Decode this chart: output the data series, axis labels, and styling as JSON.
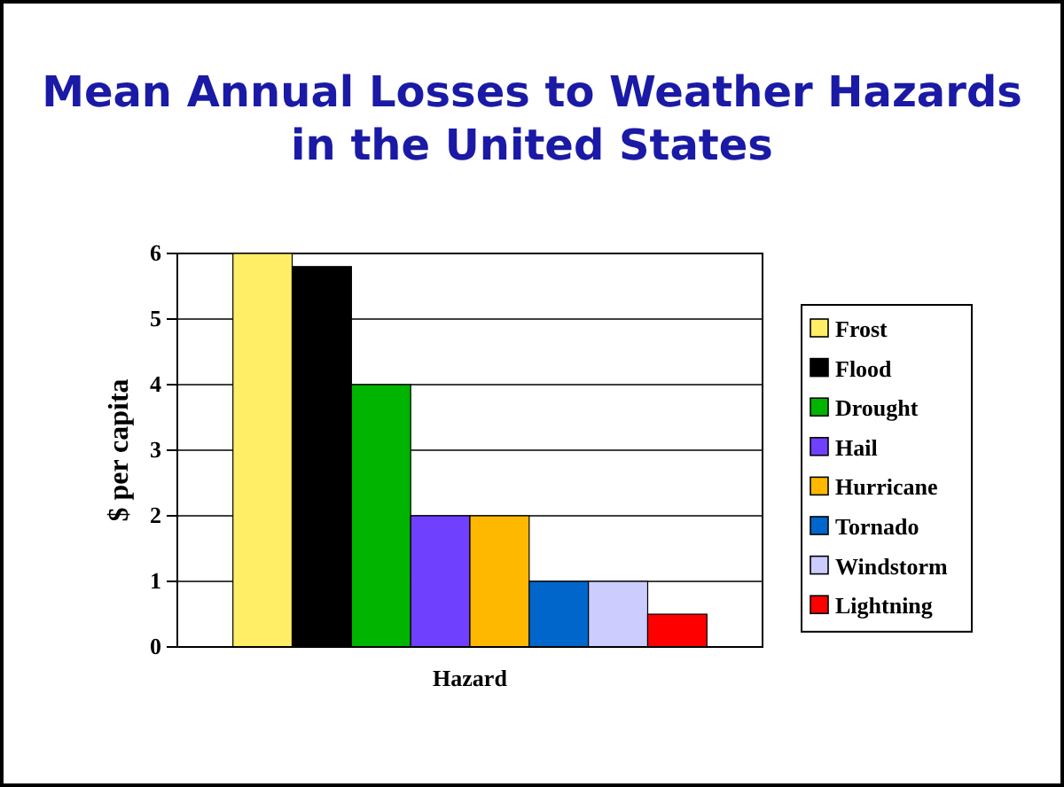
{
  "chart_data": {
    "type": "bar",
    "title": "Mean Annual Losses to Weather Hazards in the United States",
    "xlabel": "Hazard",
    "ylabel": "$ per capita",
    "categories": [
      null
    ],
    "series": [
      {
        "name": "Frost",
        "color": "#ffee66",
        "values": [
          6
        ]
      },
      {
        "name": "Flood",
        "color": "#000000",
        "values": [
          5.8
        ]
      },
      {
        "name": "Drought",
        "color": "#00b400",
        "values": [
          4
        ]
      },
      {
        "name": "Hail",
        "color": "#7040ff",
        "values": [
          2
        ]
      },
      {
        "name": "Hurricane",
        "color": "#ffb800",
        "values": [
          2
        ]
      },
      {
        "name": "Tornado",
        "color": "#0066cc",
        "values": [
          1
        ]
      },
      {
        "name": "Windstorm",
        "color": "#ccccff",
        "values": [
          1
        ]
      },
      {
        "name": "Lightning",
        "color": "#ff0000",
        "values": [
          0.5
        ]
      }
    ],
    "ylim": [
      0,
      6
    ],
    "yticks": [
      0,
      1,
      2,
      3,
      4,
      5,
      6
    ],
    "grid": "y",
    "legend": "right"
  }
}
